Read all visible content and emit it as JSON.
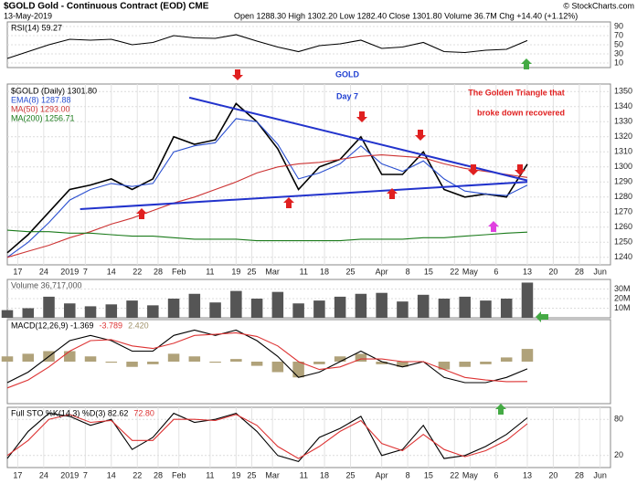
{
  "header": {
    "symbol": "$GOLD Gold - Continuous Contract (EOD) CME",
    "date": "13-May-2019",
    "quote": "Open 1288.30  High 1302.20  Low 1282.40  Close 1301.80  Volume 36.7M  Chg +14.40 (+1.12%)",
    "credit": "© StockCharts.com"
  },
  "chart_data": [
    {
      "type": "line",
      "xlim": [
        0,
        116
      ],
      "ylim": [
        0,
        100
      ],
      "yticks": [
        10,
        30,
        50,
        70,
        90
      ],
      "grid": true,
      "x": [
        0,
        4,
        8,
        12,
        16,
        20,
        24,
        28,
        32,
        36,
        40,
        44,
        48,
        52,
        56,
        60,
        64,
        68,
        72,
        76,
        80,
        84,
        88,
        92,
        96,
        100
      ],
      "series": [
        {
          "name": "RSI(14) 59.27",
          "color": "#000000",
          "values": [
            20,
            35,
            50,
            62,
            60,
            62,
            50,
            55,
            70,
            65,
            64,
            72,
            58,
            45,
            35,
            48,
            52,
            60,
            42,
            45,
            55,
            35,
            33,
            38,
            40,
            59.27
          ]
        }
      ]
    },
    {
      "type": "line",
      "xlim": [
        0,
        116
      ],
      "ylim": [
        1235,
        1355
      ],
      "yticks": [
        1240,
        1250,
        1260,
        1270,
        1280,
        1290,
        1300,
        1310,
        1320,
        1330,
        1340,
        1350
      ],
      "grid": true,
      "xticks": [
        {
          "value": 2,
          "label": "17"
        },
        {
          "value": 7,
          "label": "24"
        },
        {
          "value": 12,
          "label": "2019"
        },
        {
          "value": 15,
          "label": "7"
        },
        {
          "value": 20,
          "label": "14"
        },
        {
          "value": 25,
          "label": "22"
        },
        {
          "value": 29,
          "label": "28"
        },
        {
          "value": 33,
          "label": "Feb"
        },
        {
          "value": 39,
          "label": "11"
        },
        {
          "value": 44,
          "label": "19"
        },
        {
          "value": 47,
          "label": "25"
        },
        {
          "value": 51,
          "label": "Mar"
        },
        {
          "value": 57,
          "label": "11"
        },
        {
          "value": 61,
          "label": "18"
        },
        {
          "value": 66,
          "label": "25"
        },
        {
          "value": 72,
          "label": "Apr"
        },
        {
          "value": 77,
          "label": "8"
        },
        {
          "value": 81,
          "label": "15"
        },
        {
          "value": 86,
          "label": "22"
        },
        {
          "value": 89,
          "label": "May"
        },
        {
          "value": 94,
          "label": "6"
        },
        {
          "value": 100,
          "label": "13"
        },
        {
          "value": 105,
          "label": "20"
        },
        {
          "value": 110,
          "label": "28"
        },
        {
          "value": 114,
          "label": "Jun"
        }
      ],
      "x": [
        0,
        4,
        8,
        12,
        16,
        20,
        24,
        28,
        32,
        36,
        40,
        44,
        48,
        52,
        56,
        60,
        64,
        68,
        72,
        76,
        80,
        84,
        88,
        92,
        96,
        100
      ],
      "series": [
        {
          "name": "$GOLD (Daily) 1301.80",
          "color": "#000000",
          "values": [
            1243,
            1255,
            1270,
            1285,
            1288,
            1292,
            1285,
            1292,
            1320,
            1315,
            1318,
            1342,
            1330,
            1312,
            1285,
            1300,
            1305,
            1320,
            1295,
            1295,
            1310,
            1285,
            1280,
            1282,
            1280,
            1301.8
          ]
        },
        {
          "name": "EMA(8) 1287.88",
          "color": "#2a4fd0",
          "values": [
            1240,
            1250,
            1263,
            1278,
            1285,
            1289,
            1287,
            1289,
            1310,
            1314,
            1316,
            1332,
            1330,
            1315,
            1292,
            1296,
            1302,
            1314,
            1302,
            1297,
            1304,
            1292,
            1284,
            1282,
            1281,
            1287.88
          ]
        },
        {
          "name": "MA(50) 1293.00",
          "color": "#cc3333",
          "values": [
            1240,
            1244,
            1248,
            1253,
            1257,
            1262,
            1266,
            1271,
            1276,
            1280,
            1285,
            1290,
            1296,
            1300,
            1302,
            1303,
            1305,
            1307,
            1308,
            1307,
            1306,
            1302,
            1299,
            1297,
            1295,
            1293
          ]
        },
        {
          "name": "MA(200) 1256.71",
          "color": "#1a7a1a",
          "values": [
            1258,
            1257,
            1257,
            1256,
            1256,
            1255,
            1254,
            1254,
            1253,
            1252,
            1252,
            1252,
            1251,
            1251,
            1251,
            1251,
            1251,
            1252,
            1252,
            1252,
            1253,
            1253,
            1254,
            1255,
            1256,
            1256.71
          ]
        }
      ],
      "trendlines": [
        {
          "color": "#2233cc",
          "x": [
            35,
            100
          ],
          "y": [
            1346,
            1291
          ]
        },
        {
          "color": "#2233cc",
          "x": [
            14,
            100
          ],
          "y": [
            1272,
            1290
          ]
        }
      ],
      "annotations": [
        {
          "text": "GOLD",
          "color": "#1f3fd1"
        },
        {
          "text": "Day 7",
          "color": "#1f3fd1"
        },
        {
          "text": "The Golden Triangle that",
          "color": "#e02020"
        },
        {
          "text": "broke down recovered",
          "color": "#e02020"
        }
      ]
    },
    {
      "type": "bar",
      "xlim": [
        0,
        116
      ],
      "ylim": [
        0,
        40000000
      ],
      "yticks": [
        {
          "value": 10000000,
          "label": "10M"
        },
        {
          "value": 20000000,
          "label": "20M"
        },
        {
          "value": 30000000,
          "label": "30M"
        }
      ],
      "grid": true,
      "x": [
        0,
        4,
        8,
        12,
        16,
        20,
        24,
        28,
        32,
        36,
        40,
        44,
        48,
        52,
        56,
        60,
        64,
        68,
        72,
        76,
        80,
        84,
        88,
        92,
        96,
        100
      ],
      "series": [
        {
          "name": "Volume 36,717,000",
          "color": "#555555",
          "values": [
            8000000,
            10000000,
            22000000,
            15000000,
            12000000,
            14000000,
            18000000,
            13000000,
            20000000,
            25000000,
            16000000,
            28000000,
            20000000,
            27000000,
            15000000,
            18000000,
            22000000,
            25000000,
            26000000,
            17000000,
            24000000,
            20000000,
            22000000,
            18000000,
            20000000,
            36717000
          ]
        }
      ]
    },
    {
      "type": "line",
      "xlim": [
        0,
        116
      ],
      "ylim": [
        -8,
        8
      ],
      "grid": true,
      "x": [
        0,
        4,
        8,
        12,
        16,
        20,
        24,
        28,
        32,
        36,
        40,
        44,
        48,
        52,
        56,
        60,
        64,
        68,
        72,
        76,
        80,
        84,
        88,
        92,
        96,
        100
      ],
      "series": [
        {
          "name": "MACD(12,26,9) -1.369",
          "color": "#000000",
          "values": [
            -4,
            -2,
            1,
            4,
            5,
            4,
            2,
            2,
            5,
            6,
            5,
            6,
            4,
            1,
            -3,
            -2,
            0,
            2,
            0,
            -1,
            0,
            -3,
            -4,
            -4,
            -3,
            -1.369
          ]
        },
        {
          "name": "-3.789",
          "color": "#dd3333",
          "values": [
            -5,
            -3.5,
            -1,
            2,
            4,
            4.2,
            3,
            2.5,
            3.5,
            5,
            5.2,
            5.5,
            4.8,
            3,
            0,
            -1.5,
            -1,
            0.5,
            0.5,
            0,
            0,
            -1.5,
            -3,
            -3.5,
            -3.8,
            -3.789
          ]
        },
        {
          "name": "2.420",
          "color": "#b0a27a",
          "type": "bar",
          "values": [
            1,
            1.5,
            2,
            2,
            1,
            -0.2,
            -1,
            -0.5,
            1.5,
            1,
            -0.2,
            0.5,
            -0.8,
            -2,
            -3,
            -0.5,
            1,
            1.5,
            -0.5,
            -1,
            0,
            -1.5,
            -1,
            -0.5,
            0.8,
            2.42
          ]
        }
      ]
    },
    {
      "type": "line",
      "xlim": [
        0,
        116
      ],
      "ylim": [
        0,
        100
      ],
      "yticks": [
        20,
        80
      ],
      "grid": true,
      "xticks": [
        {
          "value": 2,
          "label": "17"
        },
        {
          "value": 7,
          "label": "24"
        },
        {
          "value": 12,
          "label": "2019"
        },
        {
          "value": 15,
          "label": "7"
        },
        {
          "value": 20,
          "label": "14"
        },
        {
          "value": 25,
          "label": "22"
        },
        {
          "value": 29,
          "label": "28"
        },
        {
          "value": 33,
          "label": "Feb"
        },
        {
          "value": 39,
          "label": "11"
        },
        {
          "value": 44,
          "label": "19"
        },
        {
          "value": 47,
          "label": "25"
        },
        {
          "value": 51,
          "label": "Mar"
        },
        {
          "value": 57,
          "label": "11"
        },
        {
          "value": 61,
          "label": "18"
        },
        {
          "value": 66,
          "label": "25"
        },
        {
          "value": 72,
          "label": "Apr"
        },
        {
          "value": 77,
          "label": "8"
        },
        {
          "value": 81,
          "label": "15"
        },
        {
          "value": 86,
          "label": "22"
        },
        {
          "value": 89,
          "label": "May"
        },
        {
          "value": 94,
          "label": "6"
        },
        {
          "value": 100,
          "label": "13"
        },
        {
          "value": 105,
          "label": "20"
        },
        {
          "value": 110,
          "label": "28"
        },
        {
          "value": 114,
          "label": "Jun"
        }
      ],
      "x": [
        0,
        4,
        8,
        12,
        16,
        20,
        24,
        28,
        32,
        36,
        40,
        44,
        48,
        52,
        56,
        60,
        64,
        68,
        72,
        76,
        80,
        84,
        88,
        92,
        96,
        100
      ],
      "series": [
        {
          "name": "Full STO %K(14,3) %D(3) 82.62",
          "color": "#000000",
          "values": [
            15,
            60,
            90,
            85,
            70,
            80,
            30,
            50,
            90,
            75,
            80,
            90,
            60,
            20,
            10,
            50,
            65,
            85,
            20,
            30,
            70,
            15,
            20,
            35,
            55,
            82.62
          ]
        },
        {
          "name": "72.80",
          "color": "#dd3333",
          "values": [
            20,
            45,
            80,
            88,
            75,
            78,
            45,
            45,
            80,
            80,
            78,
            88,
            70,
            35,
            15,
            35,
            60,
            78,
            40,
            28,
            55,
            30,
            18,
            28,
            45,
            72.8
          ]
        }
      ]
    }
  ]
}
